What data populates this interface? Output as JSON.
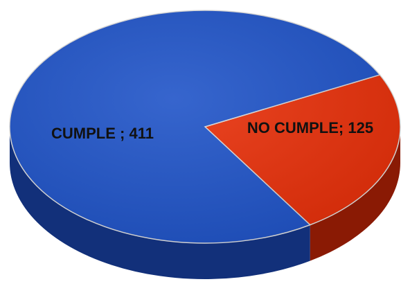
{
  "chart_data": {
    "type": "pie",
    "style": "3d",
    "slices": [
      {
        "label": "CUMPLE",
        "value": 411,
        "data_label": "CUMPLE ; 411",
        "color": "#2054c8",
        "side_color": "#12307a"
      },
      {
        "label": "NO CUMPLE",
        "value": 125,
        "data_label": "NO CUMPLE; 125",
        "color": "#e8300a",
        "side_color": "#8a1a04"
      }
    ],
    "legend": "none",
    "title": ""
  }
}
